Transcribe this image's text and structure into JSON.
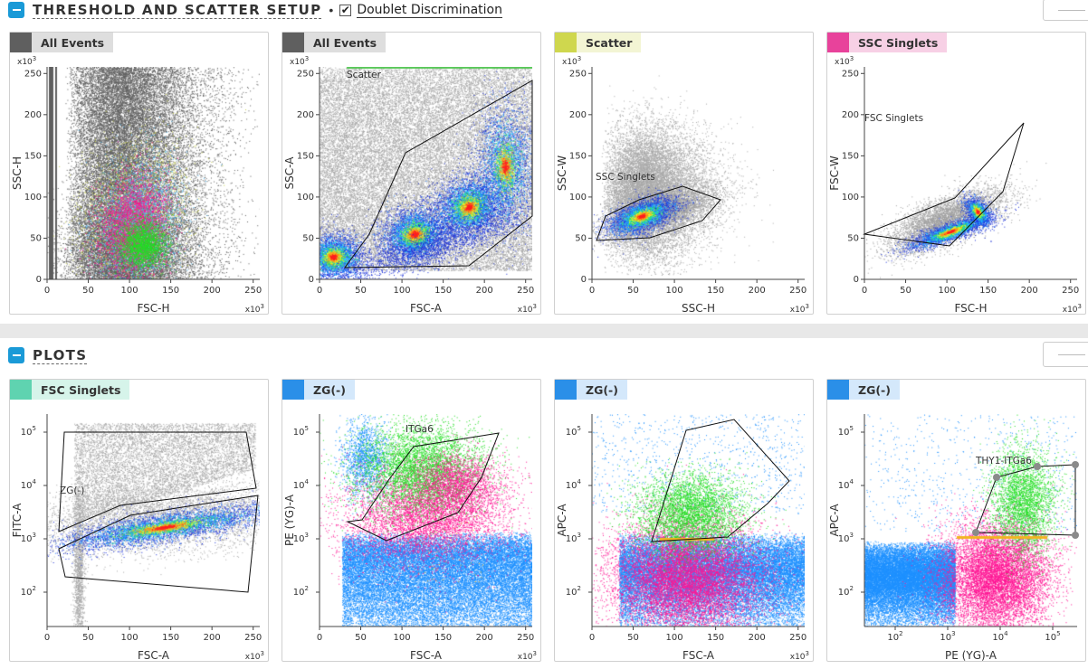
{
  "threshold_section": {
    "title": "THRESHOLD AND SCATTER SETUP",
    "separator": "•",
    "doublet_checked": true,
    "doublet_label": "Doublet Discrimination"
  },
  "plots_section": {
    "title": "PLOTS"
  },
  "colors": {
    "accent": "#1a9ad7",
    "all_events": "#5f5f5f",
    "scatter": "#cfd74e",
    "ssc_singlets": "#e8429b",
    "fsc_singlets": "#5fd3b0",
    "zg": "#2a8fe8",
    "magenta_pop": "#ff1493",
    "green_pop": "#22dd22",
    "gray_events": "#999999",
    "blue_events": "#1e90ff"
  },
  "plots": [
    {
      "tag": "All Events",
      "swatch": "#5f5f5f",
      "tag_bg": "#dedede",
      "x_label": "FSC-H",
      "y_label": "SSC-H",
      "x_mult": "x10",
      "y_mult": "x10",
      "exp": "3",
      "x_ticks": [
        "0",
        "50",
        "100",
        "150",
        "200",
        "250"
      ],
      "y_ticks": [
        "0",
        "50",
        "100",
        "150",
        "200",
        "250"
      ],
      "gate_label": ""
    },
    {
      "tag": "All Events",
      "swatch": "#5f5f5f",
      "tag_bg": "#dedede",
      "x_label": "FSC-A",
      "y_label": "SSC-A",
      "x_mult": "x10",
      "y_mult": "x10",
      "exp": "3",
      "x_ticks": [
        "0",
        "50",
        "100",
        "150",
        "200",
        "250"
      ],
      "y_ticks": [
        "0",
        "50",
        "100",
        "150",
        "200",
        "250"
      ],
      "gate_label": "Scatter"
    },
    {
      "tag": "Scatter",
      "swatch": "#cfd74e",
      "tag_bg": "#f3f5d4",
      "x_label": "SSC-H",
      "y_label": "SSC-W",
      "x_mult": "x10",
      "y_mult": "x10",
      "exp": "3",
      "x_ticks": [
        "0",
        "50",
        "100",
        "150",
        "200",
        "250"
      ],
      "y_ticks": [
        "0",
        "50",
        "100",
        "150",
        "200",
        "250"
      ],
      "gate_label": "SSC Singlets"
    },
    {
      "tag": "SSC Singlets",
      "swatch": "#e8429b",
      "tag_bg": "#f7d0e5",
      "x_label": "FSC-H",
      "y_label": "FSC-W",
      "x_mult": "x10",
      "y_mult": "x10",
      "exp": "3",
      "x_ticks": [
        "0",
        "50",
        "100",
        "150",
        "200",
        "250"
      ],
      "y_ticks": [
        "0",
        "50",
        "100",
        "150",
        "200",
        "250"
      ],
      "gate_label": "FSC Singlets"
    },
    {
      "tag": "FSC Singlets",
      "swatch": "#5fd3b0",
      "tag_bg": "#d6f4ea",
      "x_label": "FSC-A",
      "y_label": "FITC-A",
      "x_mult": "x10",
      "y_mult": "",
      "exp": "3",
      "x_ticks": [
        "0",
        "50",
        "100",
        "150",
        "200",
        "250"
      ],
      "y_ticks": [
        "10",
        "10",
        "10",
        "10"
      ],
      "y_exps": [
        "2",
        "3",
        "4",
        "5"
      ],
      "gate_label": "ZG(-)"
    },
    {
      "tag": "ZG(-)",
      "swatch": "#2a8fe8",
      "tag_bg": "#d4e8fb",
      "x_label": "FSC-A",
      "y_label": "PE (YG)-A",
      "x_mult": "x10",
      "y_mult": "",
      "exp": "3",
      "x_ticks": [
        "0",
        "50",
        "100",
        "150",
        "200",
        "250"
      ],
      "y_ticks": [
        "10",
        "10",
        "10",
        "10"
      ],
      "y_exps": [
        "2",
        "3",
        "4",
        "5"
      ],
      "gate_label": "ITGa6"
    },
    {
      "tag": "ZG(-)",
      "swatch": "#2a8fe8",
      "tag_bg": "#d4e8fb",
      "x_label": "FSC-A",
      "y_label": "APC-A",
      "x_mult": "x10",
      "y_mult": "",
      "exp": "3",
      "x_ticks": [
        "0",
        "50",
        "100",
        "150",
        "200",
        "250"
      ],
      "y_ticks": [
        "10",
        "10",
        "10",
        "10"
      ],
      "y_exps": [
        "2",
        "3",
        "4",
        "5"
      ],
      "gate_label": ""
    },
    {
      "tag": "ZG(-)",
      "swatch": "#2a8fe8",
      "tag_bg": "#d4e8fb",
      "x_label": "PE (YG)-A",
      "y_label": "APC-A",
      "x_mult": "",
      "y_mult": "",
      "exp": "",
      "x_ticks": [
        "10",
        "10",
        "10",
        "10"
      ],
      "x_exps": [
        "2",
        "3",
        "4",
        "5"
      ],
      "y_ticks": [
        "10",
        "10",
        "10",
        "10"
      ],
      "y_exps": [
        "2",
        "3",
        "4",
        "5"
      ],
      "gate_label": "THY1-ITGa6"
    }
  ]
}
